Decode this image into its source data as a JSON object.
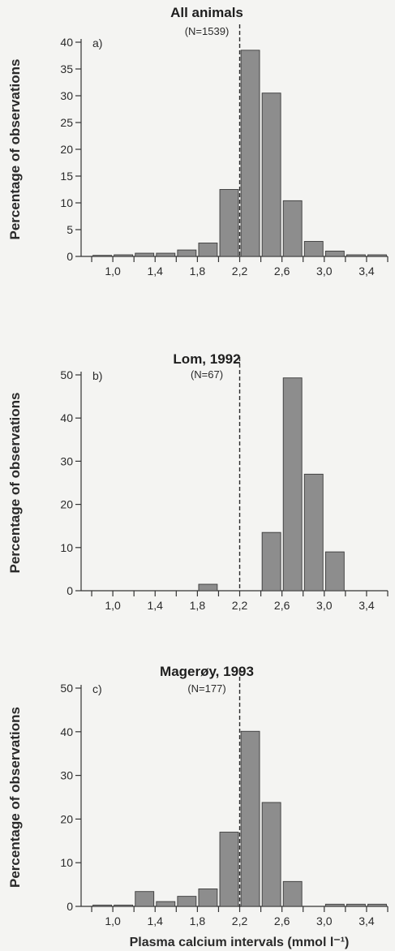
{
  "chart_data": [
    {
      "type": "bar",
      "panel_label": "a)",
      "title": "All animals",
      "subtitle": "(N=1539)",
      "ylabel": "Percentage of observations",
      "xlabel": "",
      "ylim": [
        0,
        40
      ],
      "yticks": [
        0,
        5,
        10,
        15,
        20,
        25,
        30,
        35,
        40
      ],
      "xlim": [
        0.7,
        3.6
      ],
      "xticks": [
        1.0,
        1.4,
        1.8,
        2.2,
        2.6,
        3.0,
        3.4
      ],
      "xtick_labels": [
        "1,0",
        "1,4",
        "1,8",
        "2,2",
        "2,6",
        "3,0",
        "3,4"
      ],
      "bin_width": 0.2,
      "reference_line_x": 2.2,
      "bins": [
        0.9,
        1.1,
        1.3,
        1.5,
        1.7,
        1.9,
        2.1,
        2.3,
        2.5,
        2.7,
        2.9,
        3.1,
        3.3,
        3.5
      ],
      "values": [
        0.2,
        0.3,
        0.6,
        0.6,
        1.2,
        2.5,
        12.5,
        38.5,
        30.5,
        10.4,
        2.8,
        1.0,
        0.3,
        0.3
      ]
    },
    {
      "type": "bar",
      "panel_label": "b)",
      "title": "Lom, 1992",
      "subtitle": "(N=67)",
      "ylabel": "Percentage of observations",
      "xlabel": "",
      "ylim": [
        0,
        50
      ],
      "yticks": [
        0,
        10,
        20,
        30,
        40,
        50
      ],
      "xlim": [
        0.7,
        3.6
      ],
      "xticks": [
        1.0,
        1.4,
        1.8,
        2.2,
        2.6,
        3.0,
        3.4
      ],
      "xtick_labels": [
        "1,0",
        "1,4",
        "1,8",
        "2,2",
        "2,6",
        "3,0",
        "3,4"
      ],
      "bin_width": 0.2,
      "reference_line_x": 2.2,
      "bins": [
        1.9,
        2.5,
        2.7,
        2.9,
        3.1
      ],
      "values": [
        1.5,
        13.5,
        49.3,
        27.0,
        9.0
      ]
    },
    {
      "type": "bar",
      "panel_label": "c)",
      "title": "Magerøy, 1993",
      "subtitle": "(N=177)",
      "ylabel": "Percentage of observations",
      "xlabel": "Plasma calcium intervals (mmol l⁻¹)",
      "ylim": [
        0,
        50
      ],
      "yticks": [
        0,
        10,
        20,
        30,
        40,
        50
      ],
      "xlim": [
        0.7,
        3.6
      ],
      "xticks": [
        1.0,
        1.4,
        1.8,
        2.2,
        2.6,
        3.0,
        3.4
      ],
      "xtick_labels": [
        "1,0",
        "1,4",
        "1,8",
        "2,2",
        "2,6",
        "3,0",
        "3,4"
      ],
      "bin_width": 0.2,
      "reference_line_x": 2.2,
      "bins": [
        0.9,
        1.1,
        1.3,
        1.5,
        1.7,
        1.9,
        2.1,
        2.3,
        2.5,
        2.7,
        3.1,
        3.3,
        3.5
      ],
      "values": [
        0.3,
        0.3,
        3.4,
        1.1,
        2.3,
        4.0,
        17.0,
        40.1,
        23.8,
        5.7,
        0.5,
        0.5,
        0.5
      ]
    }
  ]
}
